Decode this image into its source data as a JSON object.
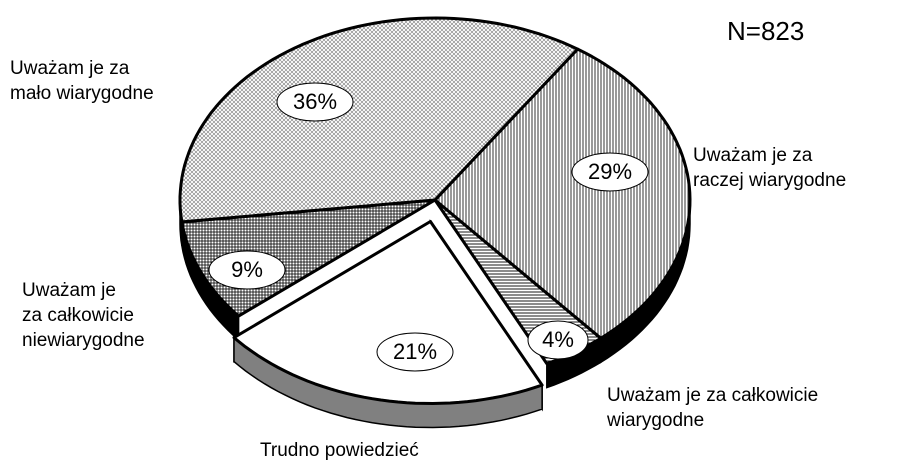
{
  "chart_data": {
    "type": "pie3d",
    "annotation": "N=823",
    "categories": [
      "Uważam je za\nraczej wiarygodne",
      "Uważam je za całkowicie\nwiarygodne",
      "Trudno powiedzieć",
      "Uważam je\nza całkowicie\nniewiarygodne",
      "Uważam je za\nmało wiarygodne"
    ],
    "values": [
      29,
      4,
      21,
      9,
      36
    ],
    "value_labels": [
      "29%",
      "4%",
      "21%",
      "9%",
      "36%"
    ],
    "patterns": [
      "vertical",
      "horizontal",
      "none",
      "grid",
      "dots"
    ],
    "side_colors": [
      "#000000",
      "#000000",
      "#808080",
      "#000000",
      "#000000"
    ],
    "exploded": [
      false,
      false,
      true,
      false,
      false
    ],
    "start_angle": 34
  }
}
